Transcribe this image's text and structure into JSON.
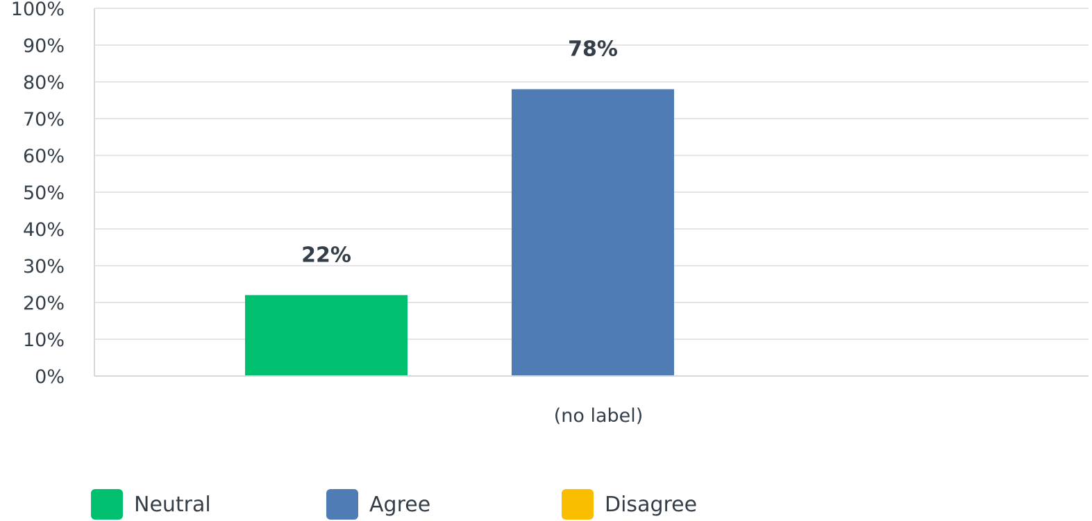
{
  "chart_data": {
    "type": "bar",
    "categories": [
      "(no label)"
    ],
    "series": [
      {
        "name": "Neutral",
        "values": [
          22
        ],
        "color": "#00bf6f"
      },
      {
        "name": "Agree",
        "values": [
          78
        ],
        "color": "#507cb6"
      },
      {
        "name": "Disagree",
        "values": [
          0
        ],
        "color": "#f9be00"
      }
    ],
    "value_labels": [
      "22%",
      "78%",
      ""
    ],
    "ylim": [
      0,
      100
    ],
    "yticks": [
      "0%",
      "10%",
      "20%",
      "30%",
      "40%",
      "50%",
      "60%",
      "70%",
      "80%",
      "90%",
      "100%"
    ],
    "grid": true,
    "legend_position": "bottom-left"
  },
  "legend": {
    "items": [
      {
        "label": "Neutral",
        "color": "#00bf6f"
      },
      {
        "label": "Agree",
        "color": "#507cb6"
      },
      {
        "label": "Disagree",
        "color": "#f9be00"
      }
    ]
  }
}
